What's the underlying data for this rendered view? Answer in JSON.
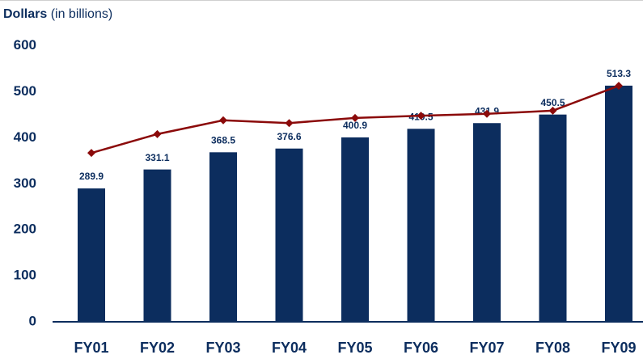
{
  "chart_data": {
    "type": "bar",
    "title": "Dollars",
    "subtitle": "(in billions)",
    "categories": [
      "FY01",
      "FY02",
      "FY03",
      "FY04",
      "FY05",
      "FY06",
      "FY07",
      "FY08",
      "FY09"
    ],
    "series": [
      {
        "type": "bar",
        "color": "#0c2d5e",
        "values": [
          289.9,
          331.1,
          368.5,
          376.6,
          400.9,
          419.5,
          431.9,
          450.5,
          513.3
        ]
      },
      {
        "type": "line",
        "color": "#8b0a0a",
        "values": [
          367,
          408,
          438,
          432,
          443,
          448,
          452,
          459,
          513
        ]
      }
    ],
    "ylim": [
      0,
      600
    ],
    "yticks": [
      0,
      100,
      200,
      300,
      400,
      500,
      600
    ],
    "grid": false
  }
}
